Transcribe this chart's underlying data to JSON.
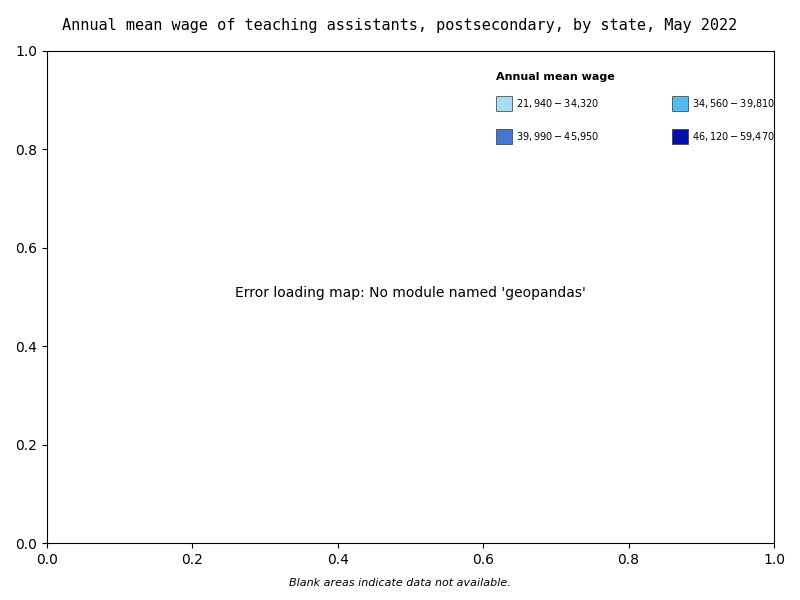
{
  "title": "Annual mean wage of teaching assistants, postsecondary, by state, May 2022",
  "legend_title": "Annual mean wage",
  "footnote": "Blank areas indicate data not available.",
  "legend": [
    {
      "label": "$21,940 - $34,320",
      "color": "#aaddf0"
    },
    {
      "label": "$34,560 - $39,810",
      "color": "#55bbee"
    },
    {
      "label": "$39,990 - $45,950",
      "color": "#4477cc"
    },
    {
      "label": "$46,120 - $59,470",
      "color": "#0011aa"
    }
  ],
  "state_colors": {
    "WA": "#aaddf0",
    "OR": "#4477cc",
    "CA": "#4477cc",
    "NV": "#aaddf0",
    "ID": "#4477cc",
    "MT": "#0011aa",
    "WY": "#ffffff",
    "UT": "#55bbee",
    "AZ": "#55bbee",
    "CO": "#55bbee",
    "NM": "#0011aa",
    "ND": "#0011aa",
    "SD": "#55bbee",
    "NE": "#ffffff",
    "KS": "#55bbee",
    "OK": "#55bbee",
    "TX": "#55bbee",
    "MN": "#0011aa",
    "IA": "#0011aa",
    "MO": "#55bbee",
    "AR": "#55bbee",
    "LA": "#55bbee",
    "WI": "#55bbee",
    "IL": "#4477cc",
    "IN": "#4477cc",
    "MI": "#55bbee",
    "OH": "#55bbee",
    "KY": "#55bbee",
    "TN": "#55bbee",
    "MS": "#aaddf0",
    "AL": "#aaddf0",
    "GA": "#0011aa",
    "FL": "#aaddf0",
    "SC": "#0011aa",
    "NC": "#aaddf0",
    "VA": "#55bbee",
    "WV": "#55bbee",
    "PA": "#55bbee",
    "NY": "#0011aa",
    "VT": "#aaddf0",
    "NH": "#0011aa",
    "MA": "#0011aa",
    "RI": "#0011aa",
    "CT": "#0011aa",
    "NJ": "#0011aa",
    "DE": "#ffffff",
    "MD": "#55bbee",
    "DC": "#0011aa",
    "ME": "#0011aa",
    "AK": "#aaddf0",
    "HI": "#55bbee",
    "PR": "#55bbee"
  },
  "no_data_color": "#ffffff",
  "background_color": "#ffffff"
}
